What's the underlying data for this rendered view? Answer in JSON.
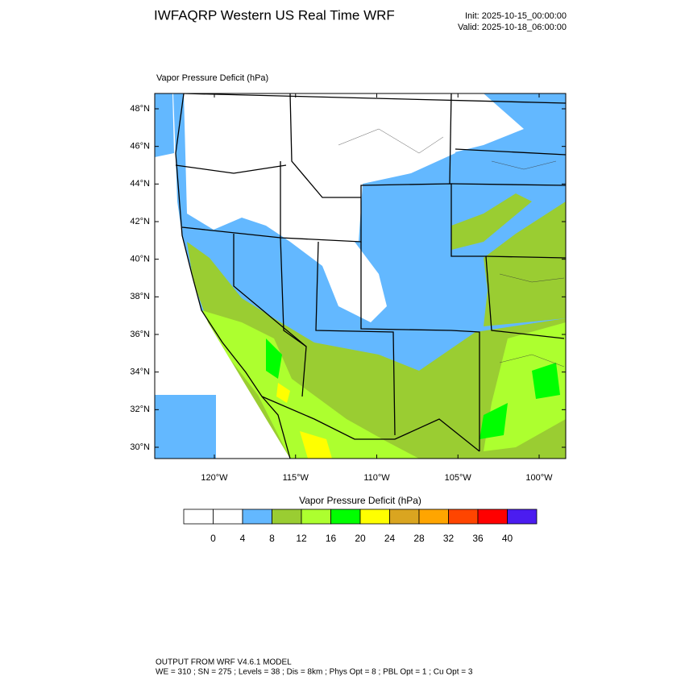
{
  "header": {
    "title": "IWFAQRP Western US Real Time WRF",
    "init": "Init: 2025-10-15_00:00:00",
    "valid": "Valid: 2025-10-18_06:00:00"
  },
  "map": {
    "field_label": "Vapor Pressure Deficit   (hPa)",
    "lat_ticks": [
      {
        "value": 48,
        "label": "48°N"
      },
      {
        "value": 46,
        "label": "46°N"
      },
      {
        "value": 44,
        "label": "44°N"
      },
      {
        "value": 42,
        "label": "42°N"
      },
      {
        "value": 40,
        "label": "40°N"
      },
      {
        "value": 38,
        "label": "38°N"
      },
      {
        "value": 36,
        "label": "36°N"
      },
      {
        "value": 34,
        "label": "34°N"
      },
      {
        "value": 32,
        "label": "32°N"
      },
      {
        "value": 30,
        "label": "30°N"
      }
    ],
    "lon_ticks": [
      {
        "value": -120,
        "label": "120°W"
      },
      {
        "value": -115,
        "label": "115°W"
      },
      {
        "value": -110,
        "label": "110°W"
      },
      {
        "value": -105,
        "label": "105°W"
      },
      {
        "value": -100,
        "label": "100°W"
      }
    ]
  },
  "colorbar": {
    "title": "Vapor Pressure Deficit  (hPa)",
    "ticks": [
      0,
      4,
      8,
      12,
      16,
      20,
      24,
      28,
      32,
      36,
      40
    ],
    "colors": [
      "#ffffff",
      "#ffffff",
      "#63b8ff",
      "#9acd32",
      "#adff2f",
      "#00ff00",
      "#ffff00",
      "#daa520",
      "#ffa500",
      "#ff4500",
      "#ff0000",
      "#4b1cf0"
    ]
  },
  "footer": {
    "line1": "OUTPUT FROM WRF V4.6.1 MODEL",
    "line2": "WE = 310 ; SN = 275 ; Levels = 38 ; Dis = 8km ; Phys Opt = 8 ; PBL Opt = 1 ; Cu Opt = 3"
  }
}
